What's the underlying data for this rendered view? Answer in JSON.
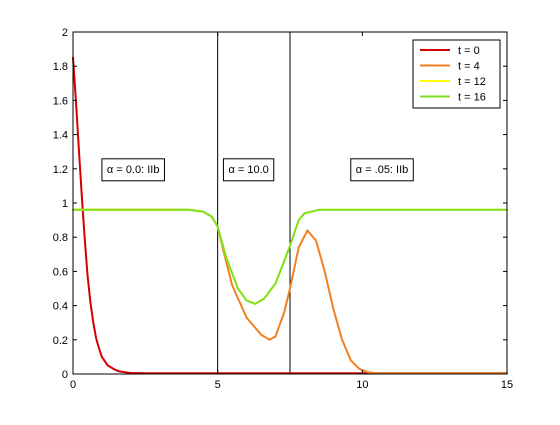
{
  "chart_data": {
    "type": "line",
    "title": "",
    "xlabel": "",
    "ylabel": "",
    "xlim": [
      0,
      15
    ],
    "ylim": [
      0,
      2
    ],
    "xticks": [
      0,
      5,
      10,
      15
    ],
    "yticks": [
      0,
      0.2,
      0.4,
      0.6,
      0.8,
      1,
      1.2,
      1.4,
      1.6,
      1.8,
      2
    ],
    "xtick_labels": [
      "0",
      "5",
      "10",
      "15"
    ],
    "ytick_labels": [
      "0",
      "0.2",
      "0.4",
      "0.6",
      "0.8",
      "1",
      "1.2",
      "1.4",
      "1.6",
      "1.8",
      "2"
    ],
    "grid": false,
    "legend_position": "top-right",
    "vertical_lines": [
      5,
      7.5
    ],
    "annotations": [
      {
        "text": "α = 0.0: IIb",
        "x": 1.0,
        "y": 1.2
      },
      {
        "text": "α = 10.0",
        "x": 5.2,
        "y": 1.2
      },
      {
        "text": "α = .05: IIb",
        "x": 9.6,
        "y": 1.2
      }
    ],
    "series": [
      {
        "name": "t = 0",
        "color": "#d40000",
        "x": [
          0,
          0.1,
          0.2,
          0.3,
          0.4,
          0.5,
          0.6,
          0.7,
          0.8,
          0.9,
          1.0,
          1.2,
          1.4,
          1.6,
          1.8,
          2.0,
          2.5,
          3,
          4,
          5,
          6,
          7,
          8,
          9,
          10,
          11,
          12,
          13,
          14,
          15
        ],
        "y": [
          1.85,
          1.6,
          1.32,
          1.05,
          0.8,
          0.58,
          0.42,
          0.3,
          0.21,
          0.15,
          0.1,
          0.05,
          0.03,
          0.015,
          0.01,
          0.006,
          0.004,
          0.004,
          0.004,
          0.004,
          0.004,
          0.004,
          0.004,
          0.004,
          0.004,
          0.004,
          0.004,
          0.004,
          0.004,
          0.004
        ]
      },
      {
        "name": "t = 4",
        "color": "#f08020",
        "x": [
          0,
          0.1,
          0.2,
          4.0,
          4.5,
          4.8,
          5.0,
          5.2,
          5.5,
          6.0,
          6.5,
          6.8,
          7.0,
          7.3,
          7.5,
          7.8,
          8.1,
          8.4,
          8.7,
          9.0,
          9.3,
          9.6,
          9.9,
          10.2,
          10.5,
          11,
          12,
          13,
          14,
          15
        ],
        "y": [
          0.96,
          0.96,
          0.96,
          0.96,
          0.95,
          0.92,
          0.86,
          0.72,
          0.52,
          0.33,
          0.23,
          0.2,
          0.22,
          0.36,
          0.5,
          0.74,
          0.84,
          0.78,
          0.6,
          0.38,
          0.2,
          0.08,
          0.03,
          0.01,
          0.005,
          0.005,
          0.005,
          0.005,
          0.005,
          0.005
        ]
      },
      {
        "name": "t = 12",
        "color": "#ffff00",
        "x": [
          0,
          0.5,
          1,
          2,
          3,
          4,
          4.5,
          4.8,
          5.0,
          5.3,
          5.7,
          6.0,
          6.3,
          6.6,
          7.0,
          7.3,
          7.5,
          7.8,
          8.0,
          8.5,
          9,
          10,
          11,
          12,
          13,
          14,
          15
        ],
        "y": [
          0.96,
          0.96,
          0.96,
          0.96,
          0.96,
          0.96,
          0.95,
          0.92,
          0.86,
          0.68,
          0.5,
          0.43,
          0.41,
          0.44,
          0.53,
          0.66,
          0.75,
          0.9,
          0.94,
          0.96,
          0.96,
          0.96,
          0.96,
          0.96,
          0.96,
          0.96,
          0.96
        ]
      },
      {
        "name": "t = 16",
        "color": "#80e020",
        "x": [
          0,
          0.5,
          1,
          2,
          3,
          4,
          4.5,
          4.8,
          5.0,
          5.3,
          5.7,
          6.0,
          6.3,
          6.6,
          7.0,
          7.3,
          7.5,
          7.8,
          8.0,
          8.5,
          9,
          10,
          11,
          12,
          13,
          14,
          15
        ],
        "y": [
          0.96,
          0.96,
          0.96,
          0.96,
          0.96,
          0.96,
          0.95,
          0.92,
          0.86,
          0.68,
          0.5,
          0.43,
          0.41,
          0.44,
          0.53,
          0.66,
          0.75,
          0.9,
          0.94,
          0.96,
          0.96,
          0.96,
          0.96,
          0.96,
          0.96,
          0.96,
          0.96
        ]
      }
    ]
  }
}
